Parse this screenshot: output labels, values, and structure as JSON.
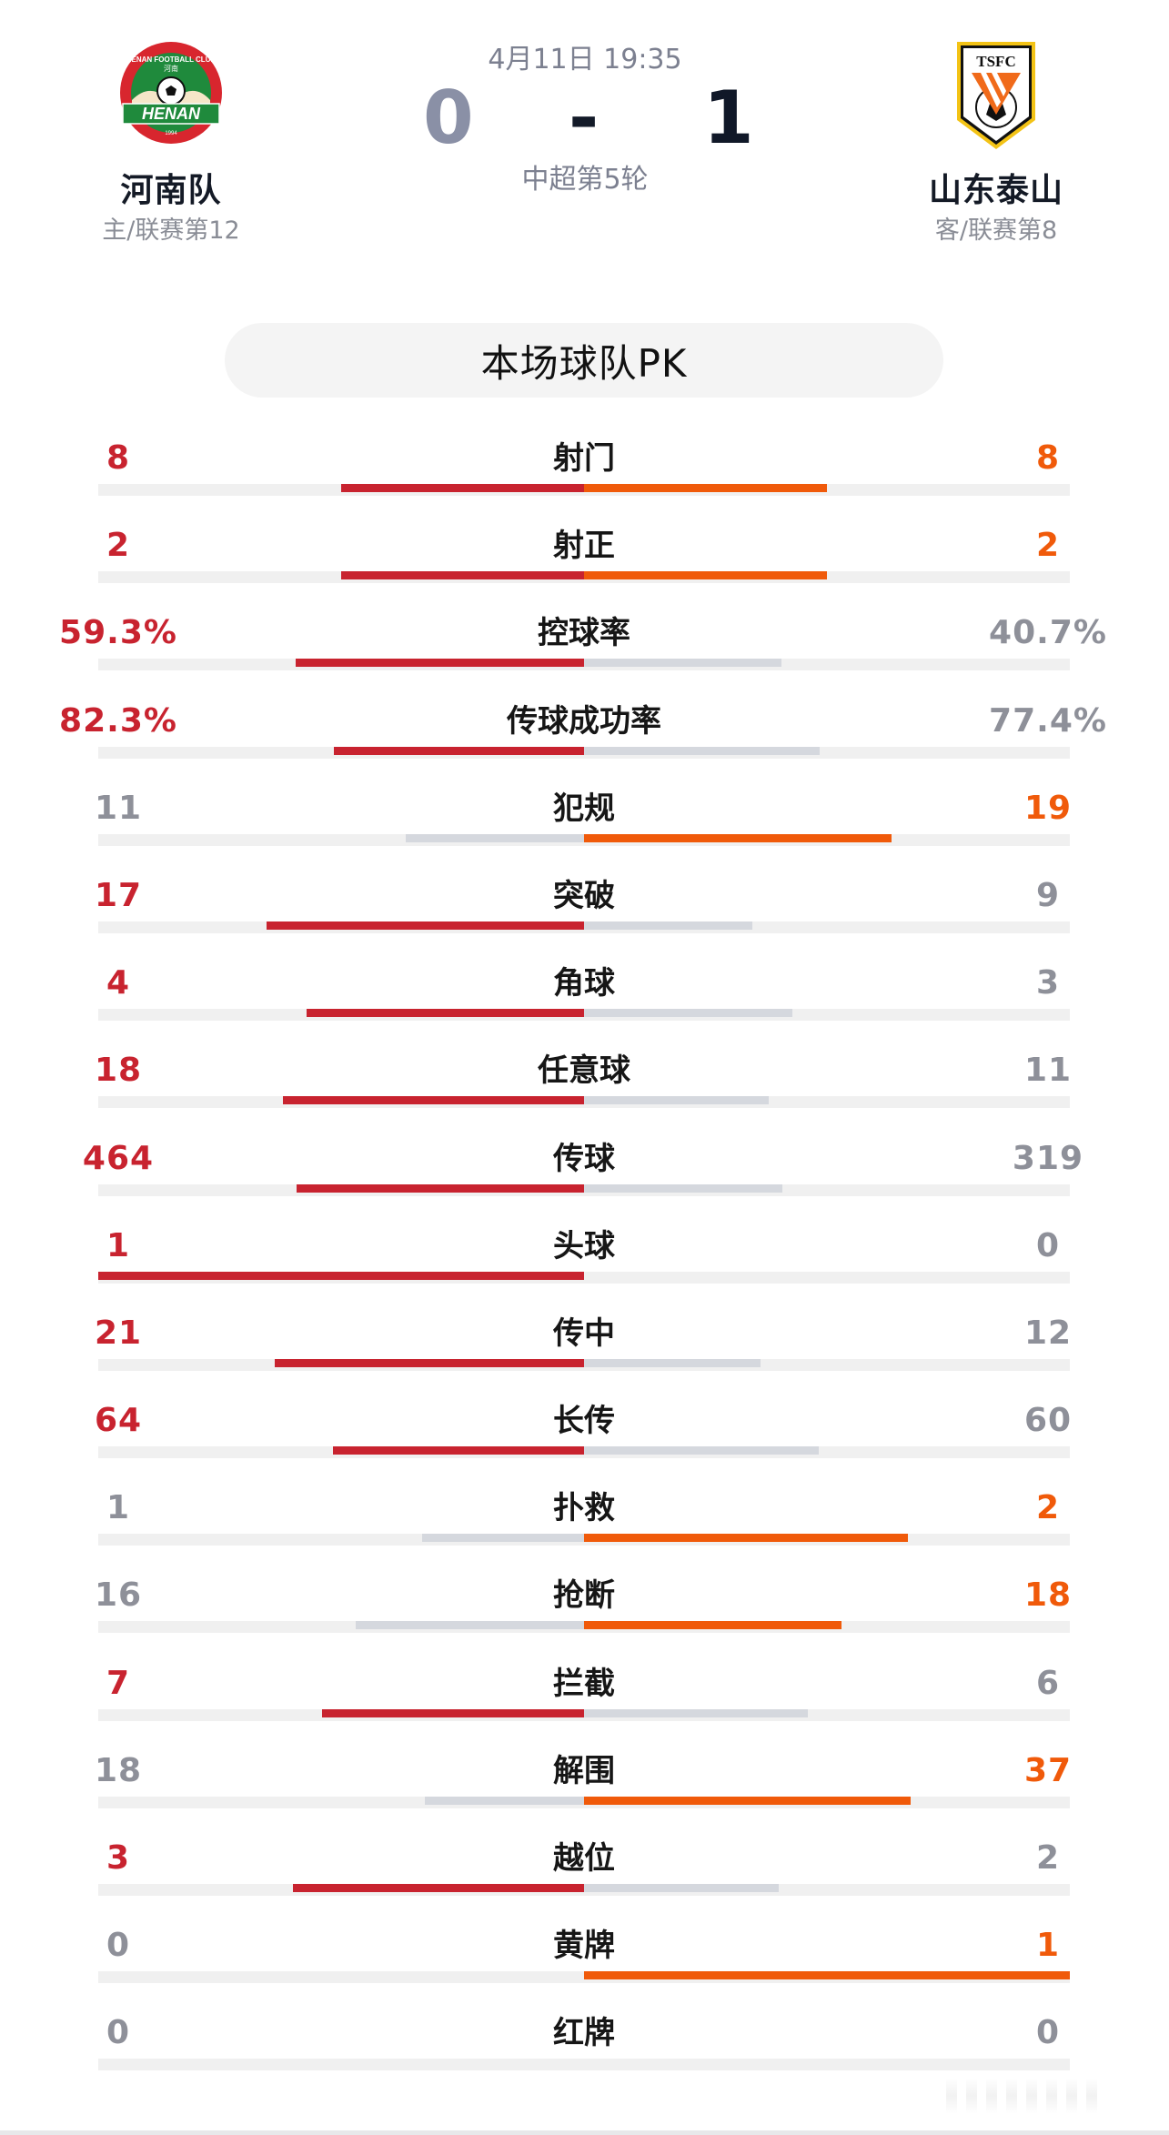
{
  "match": {
    "time": "4月11日 19:35",
    "round": "中超第5轮",
    "score": {
      "home": "0",
      "separator": "-",
      "away": "1"
    }
  },
  "home_team": {
    "name": "河南队",
    "subtitle": "主/联赛第12",
    "logo_icon": "henan-fc-crest"
  },
  "away_team": {
    "name": "山东泰山",
    "subtitle": "客/联赛第8",
    "logo_icon": "shandong-taishan-crest"
  },
  "section_title": "本场球队PK",
  "colors": {
    "home_accent": "#c8232f",
    "away_accent": "#f05a0a",
    "loser_bar": "#d5d8de",
    "loser_text": "#8e9099",
    "track": "#f0f0f0"
  },
  "stats": [
    {
      "label": "射门",
      "home": "8",
      "away": "8",
      "home_num": 8,
      "away_num": 8
    },
    {
      "label": "射正",
      "home": "2",
      "away": "2",
      "home_num": 2,
      "away_num": 2
    },
    {
      "label": "控球率",
      "home": "59.3%",
      "away": "40.7%",
      "home_num": 59.3,
      "away_num": 40.7
    },
    {
      "label": "传球成功率",
      "home": "82.3%",
      "away": "77.4%",
      "home_num": 82.3,
      "away_num": 77.4
    },
    {
      "label": "犯规",
      "home": "11",
      "away": "19",
      "home_num": 11,
      "away_num": 19
    },
    {
      "label": "突破",
      "home": "17",
      "away": "9",
      "home_num": 17,
      "away_num": 9
    },
    {
      "label": "角球",
      "home": "4",
      "away": "3",
      "home_num": 4,
      "away_num": 3
    },
    {
      "label": "任意球",
      "home": "18",
      "away": "11",
      "home_num": 18,
      "away_num": 11
    },
    {
      "label": "传球",
      "home": "464",
      "away": "319",
      "home_num": 464,
      "away_num": 319
    },
    {
      "label": "头球",
      "home": "1",
      "away": "0",
      "home_num": 1,
      "away_num": 0
    },
    {
      "label": "传中",
      "home": "21",
      "away": "12",
      "home_num": 21,
      "away_num": 12
    },
    {
      "label": "长传",
      "home": "64",
      "away": "60",
      "home_num": 64,
      "away_num": 60
    },
    {
      "label": "扑救",
      "home": "1",
      "away": "2",
      "home_num": 1,
      "away_num": 2
    },
    {
      "label": "抢断",
      "home": "16",
      "away": "18",
      "home_num": 16,
      "away_num": 18
    },
    {
      "label": "拦截",
      "home": "7",
      "away": "6",
      "home_num": 7,
      "away_num": 6
    },
    {
      "label": "解围",
      "home": "18",
      "away": "37",
      "home_num": 18,
      "away_num": 37
    },
    {
      "label": "越位",
      "home": "3",
      "away": "2",
      "home_num": 3,
      "away_num": 2
    },
    {
      "label": "黄牌",
      "home": "0",
      "away": "1",
      "home_num": 0,
      "away_num": 1
    },
    {
      "label": "红牌",
      "home": "0",
      "away": "0",
      "home_num": 0,
      "away_num": 0
    }
  ]
}
